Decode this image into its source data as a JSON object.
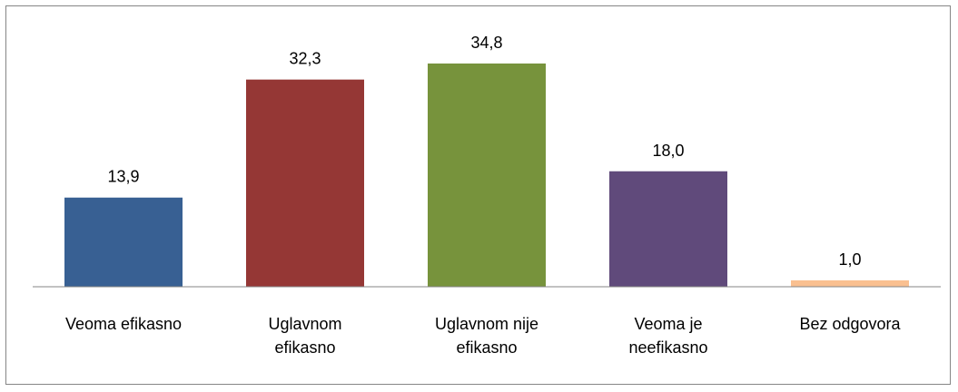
{
  "chart_data": {
    "type": "bar",
    "categories": [
      "Veoma efikasno",
      "Uglavnom efikasno",
      "Uglavnom nije efikasno",
      "Veoma je neefikasno",
      "Bez odgovora"
    ],
    "values": [
      13.9,
      32.3,
      34.8,
      18.0,
      1.0
    ],
    "value_labels": [
      "13,9",
      "32,3",
      "34,8",
      "18,0",
      "1,0"
    ],
    "colors": [
      "#386093",
      "#953735",
      "#77933c",
      "#604a7b",
      "#fac090"
    ]
  }
}
